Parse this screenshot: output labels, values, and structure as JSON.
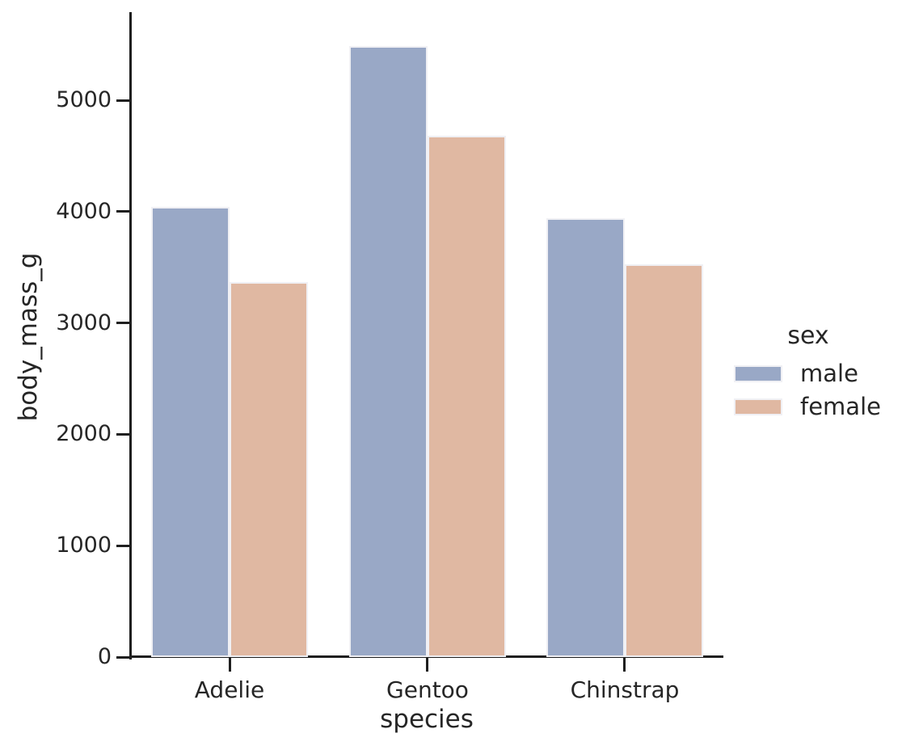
{
  "chart_data": {
    "type": "bar",
    "title": "",
    "xlabel": "species",
    "ylabel": "body_mass_g",
    "categories": [
      "Adelie",
      "Gentoo",
      "Chinstrap"
    ],
    "series": [
      {
        "name": "male",
        "color": "#99a8c6",
        "values": [
          4043,
          5485,
          3939
        ]
      },
      {
        "name": "female",
        "color": "#e0b8a2",
        "values": [
          3369,
          4680,
          3527
        ]
      }
    ],
    "ylim": [
      0,
      5770
    ],
    "yticks": [
      "0",
      "1000",
      "2000",
      "3000",
      "4000",
      "5000"
    ],
    "ytick_values": [
      0,
      1000,
      2000,
      3000,
      4000,
      5000
    ],
    "grid": false,
    "legend": {
      "title": "sex",
      "position": "right",
      "entries": [
        "male",
        "female"
      ]
    },
    "colors": {
      "spine": "#1f1f1f",
      "text": "#262626",
      "bar_edge": "#f0f0f4",
      "background": "#ffffff"
    }
  }
}
